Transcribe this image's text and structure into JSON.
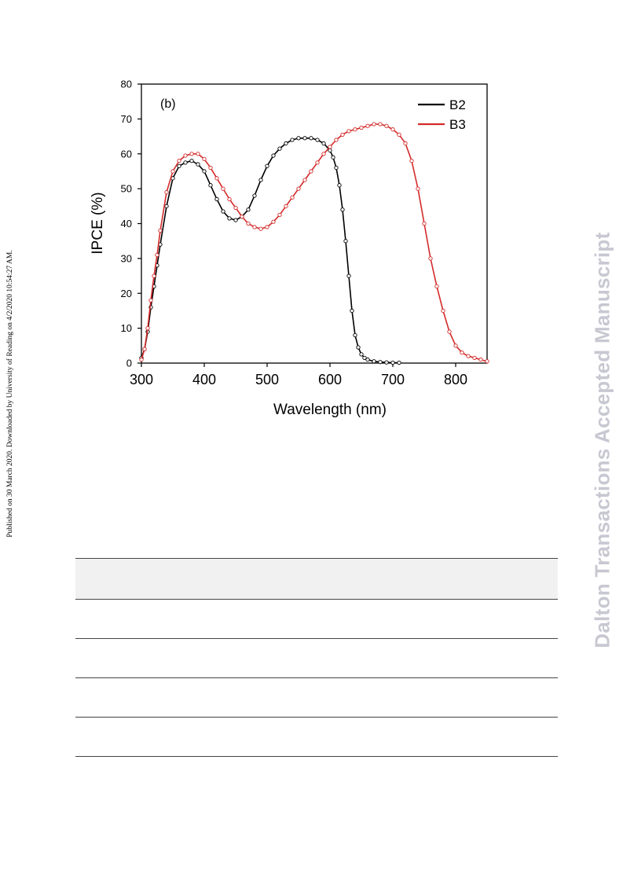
{
  "side_note": "Published on 30 March 2020. Downloaded by University of Reading on 4/2/2020 10:54:27 AM.",
  "watermark": "Dalton Transactions Accepted Manuscript",
  "chart_data": {
    "type": "line",
    "panel_label": "(b)",
    "xlabel": "Wavelength (nm)",
    "ylabel": "IPCE (%)",
    "xlim": [
      300,
      850
    ],
    "ylim": [
      0,
      80
    ],
    "xticks": [
      300,
      400,
      500,
      600,
      700,
      800
    ],
    "yticks": [
      0,
      10,
      20,
      30,
      40,
      50,
      60,
      70,
      80
    ],
    "grid": false,
    "legend_position": "top-right",
    "series": [
      {
        "name": "B2",
        "color": "#000000",
        "x": [
          300,
          305,
          310,
          315,
          320,
          325,
          330,
          340,
          350,
          360,
          370,
          380,
          390,
          400,
          410,
          420,
          430,
          440,
          450,
          460,
          470,
          480,
          490,
          500,
          510,
          520,
          530,
          540,
          550,
          560,
          570,
          580,
          590,
          600,
          605,
          610,
          615,
          620,
          625,
          630,
          635,
          640,
          645,
          650,
          655,
          660,
          670,
          680,
          690,
          700,
          710
        ],
        "y": [
          1.5,
          4,
          9,
          16,
          22,
          28,
          34,
          45,
          53,
          56.5,
          57.5,
          58,
          57,
          55,
          51,
          47,
          43.5,
          41.5,
          41,
          42,
          44,
          48,
          52.5,
          56.5,
          59.5,
          61.5,
          63,
          64,
          64.5,
          64.5,
          64.5,
          64,
          63,
          61,
          59,
          56,
          51,
          44,
          35,
          25,
          15,
          8,
          4.5,
          2.5,
          1.5,
          1,
          0.5,
          0.3,
          0.2,
          0.1,
          0.1
        ]
      },
      {
        "name": "B3",
        "color": "#d42a2a",
        "x": [
          300,
          305,
          310,
          315,
          320,
          325,
          330,
          340,
          350,
          360,
          370,
          380,
          390,
          400,
          410,
          420,
          430,
          440,
          450,
          460,
          470,
          480,
          490,
          500,
          510,
          520,
          530,
          540,
          550,
          560,
          570,
          580,
          590,
          600,
          610,
          620,
          630,
          640,
          650,
          660,
          670,
          680,
          690,
          700,
          710,
          720,
          730,
          740,
          750,
          760,
          770,
          780,
          790,
          800,
          810,
          820,
          830,
          840,
          850
        ],
        "y": [
          1,
          4,
          10,
          18,
          25,
          31,
          38,
          49,
          55,
          58,
          59.5,
          60,
          60,
          58.5,
          56,
          53,
          50,
          47,
          44.5,
          42,
          40,
          39,
          38.5,
          39,
          40.5,
          42.5,
          45,
          47.5,
          50,
          52.5,
          55,
          57.5,
          60,
          62,
          64,
          65.5,
          66.5,
          67,
          67.5,
          68,
          68.5,
          68.5,
          68,
          67,
          65.5,
          63,
          58,
          50,
          40,
          30,
          22,
          15,
          9,
          5,
          3,
          2,
          1.5,
          1,
          0.5
        ]
      }
    ]
  }
}
